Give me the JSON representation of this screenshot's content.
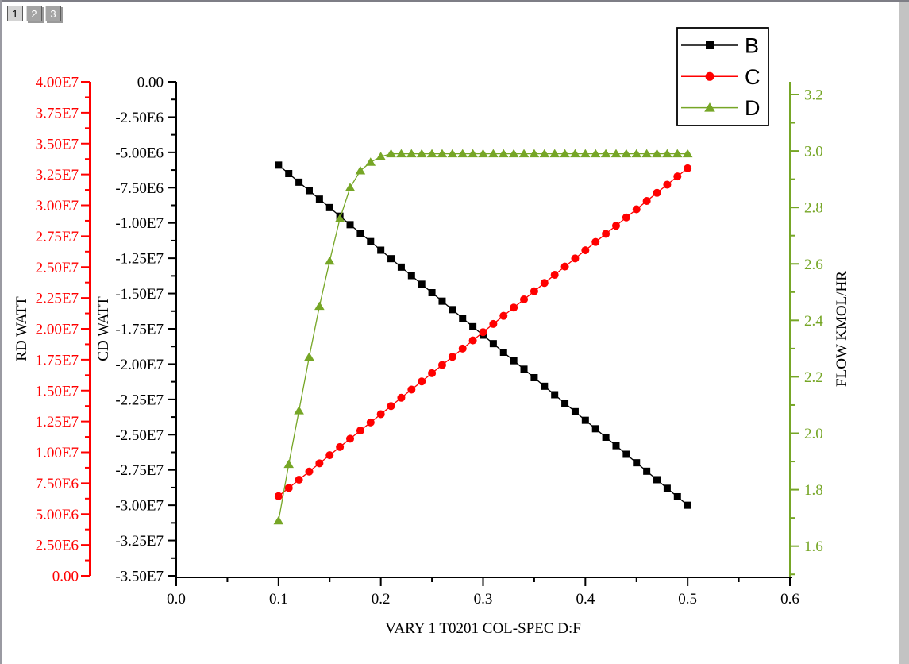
{
  "window": {
    "tabs": [
      {
        "label": "1",
        "active": true
      },
      {
        "label": "2",
        "active": false
      },
      {
        "label": "3",
        "active": false
      }
    ]
  },
  "chart_data": {
    "type": "line",
    "title": "",
    "grid": false,
    "legend": {
      "position": "top-right",
      "entries": [
        "B",
        "C",
        "D"
      ]
    },
    "x_axis": {
      "label": "VARY 1 T0201 COL-SPEC D:F",
      "range": [
        0,
        0.6
      ],
      "major_tick_values": [
        0,
        0.1,
        0.2,
        0.3,
        0.4,
        0.5,
        0.6
      ],
      "major_tick_labels": [
        "0.0",
        "0.1",
        "0.2",
        "0.3",
        "0.4",
        "0.5",
        "0.6"
      ],
      "minor_step": 0.05,
      "color": "#000000"
    },
    "y_axes": [
      {
        "id": "red",
        "label": "RD WATT",
        "side": "far-left",
        "color": "#ff0000",
        "range": [
          0,
          40000000.0
        ],
        "major_tick_values": [
          0,
          2500000.0,
          5000000.0,
          7500000.0,
          10000000.0,
          12500000.0,
          15000000.0,
          17500000.0,
          20000000.0,
          22500000.0,
          25000000.0,
          27500000.0,
          30000000.0,
          32500000.0,
          35000000.0,
          37500000.0,
          40000000.0
        ],
        "major_tick_labels": [
          "0.00",
          "2.50E6",
          "5.00E6",
          "7.50E6",
          "1.00E7",
          "1.25E7",
          "1.50E7",
          "1.75E7",
          "2.00E7",
          "2.25E7",
          "2.50E7",
          "2.75E7",
          "3.00E7",
          "3.25E7",
          "3.50E7",
          "3.75E7",
          "4.00E7"
        ],
        "extra_minor_ticks": []
      },
      {
        "id": "black",
        "label": "CD WATT",
        "side": "left",
        "color": "#000000",
        "range": [
          -35000000.0,
          0
        ],
        "major_tick_values": [
          0,
          -2500000.0,
          -5000000.0,
          -7500000.0,
          -10000000.0,
          -12500000.0,
          -15000000.0,
          -17500000.0,
          -20000000.0,
          -22500000.0,
          -25000000.0,
          -27500000.0,
          -30000000.0,
          -32500000.0,
          -35000000.0
        ],
        "major_tick_labels": [
          "0.00",
          "-2.50E6",
          "-5.00E6",
          "-7.50E6",
          "-1.00E7",
          "-1.25E7",
          "-1.50E7",
          "-1.75E7",
          "-2.00E7",
          "-2.25E7",
          "-2.50E7",
          "-2.75E7",
          "-3.00E7",
          "-3.25E7",
          "-3.50E7"
        ],
        "extra_minor_ticks": []
      },
      {
        "id": "green",
        "label": "FLOW KMOL/HR",
        "side": "right",
        "color": "#76a626",
        "range": [
          1.495,
          3.245
        ],
        "major_tick_values": [
          1.6,
          1.8,
          2.0,
          2.2,
          2.4,
          2.6,
          2.8,
          3.0,
          3.2
        ],
        "major_tick_labels": [
          "1.6",
          "1.8",
          "2.0",
          "2.2",
          "2.4",
          "2.6",
          "2.8",
          "3.0",
          "3.2"
        ],
        "extra_minor_ticks": [
          1.5
        ]
      }
    ],
    "x": [
      0.1,
      0.11,
      0.12,
      0.13,
      0.14,
      0.15,
      0.16,
      0.17,
      0.18,
      0.19,
      0.2,
      0.21,
      0.22,
      0.23,
      0.24,
      0.25,
      0.26,
      0.27,
      0.28,
      0.29,
      0.3,
      0.31,
      0.32,
      0.33,
      0.34,
      0.35,
      0.36,
      0.37,
      0.38,
      0.39,
      0.4,
      0.41,
      0.42,
      0.43,
      0.44,
      0.45,
      0.46,
      0.47,
      0.48,
      0.49,
      0.5
    ],
    "series": [
      {
        "name": "B",
        "axis": "black",
        "color": "#000000",
        "marker": "square",
        "y": [
          -5900000.0,
          -6500000.0,
          -7110000.0,
          -7710000.0,
          -8310000.0,
          -8910000.0,
          -9520000.0,
          -10120000.0,
          -10720000.0,
          -11320000.0,
          -11930000.0,
          -12530000.0,
          -13130000.0,
          -13730000.0,
          -14340000.0,
          -14940000.0,
          -15540000.0,
          -16140000.0,
          -16750000.0,
          -17350000.0,
          -17950000.0,
          -18550000.0,
          -19160000.0,
          -19760000.0,
          -20360000.0,
          -20960000.0,
          -21570000.0,
          -22170000.0,
          -22770000.0,
          -23370000.0,
          -23980000.0,
          -24580000.0,
          -25180000.0,
          -25780000.0,
          -26390000.0,
          -26990000.0,
          -27590000.0,
          -28190000.0,
          -28800000.0,
          -29400000.0,
          -30000000.0
        ]
      },
      {
        "name": "C",
        "axis": "red",
        "color": "#ff0000",
        "marker": "circle",
        "y": [
          6450000.0,
          7110000.0,
          7780000.0,
          8440000.0,
          9110000.0,
          9770000.0,
          10430000.0,
          11100000.0,
          11760000.0,
          12420000.0,
          13090000.0,
          13750000.0,
          14420000.0,
          15080000.0,
          15740000.0,
          16410000.0,
          17070000.0,
          17730000.0,
          18400000.0,
          19060000.0,
          19730000.0,
          20390000.0,
          21050000.0,
          21720000.0,
          22380000.0,
          23040000.0,
          23710000.0,
          24370000.0,
          25040000.0,
          25700000.0,
          26360000.0,
          27030000.0,
          27690000.0,
          28350000.0,
          29020000.0,
          29680000.0,
          30350000.0,
          31010000.0,
          31670000.0,
          32340000.0,
          33000000.0
        ]
      },
      {
        "name": "D",
        "axis": "green",
        "color": "#76a626",
        "marker": "triangle",
        "y": [
          1.69,
          1.89,
          2.08,
          2.27,
          2.45,
          2.61,
          2.76,
          2.87,
          2.93,
          2.96,
          2.98,
          2.99,
          2.99,
          2.99,
          2.99,
          2.99,
          2.99,
          2.99,
          2.99,
          2.99,
          2.99,
          2.99,
          2.99,
          2.99,
          2.99,
          2.99,
          2.99,
          2.99,
          2.99,
          2.99,
          2.99,
          2.99,
          2.99,
          2.99,
          2.99,
          2.99,
          2.99,
          2.99,
          2.99,
          2.99,
          2.99
        ]
      }
    ]
  }
}
